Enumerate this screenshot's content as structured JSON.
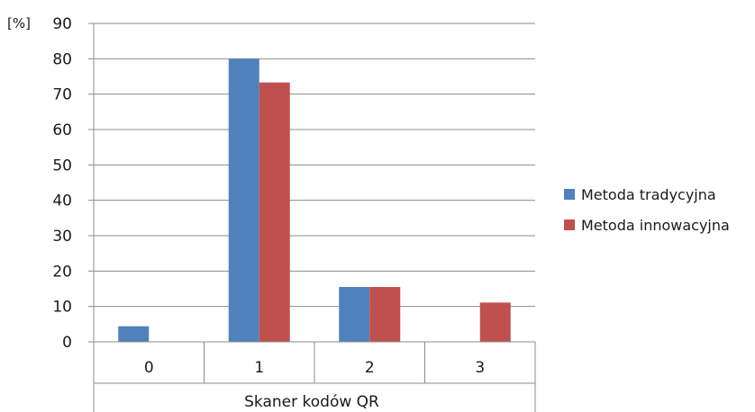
{
  "chart_data": {
    "type": "bar",
    "title": "",
    "unit_label": "[%]",
    "xlabel": "Skaner kodów QR",
    "ylabel": "",
    "categories": [
      "0",
      "1",
      "2",
      "3"
    ],
    "series": [
      {
        "name": "Metoda tradycyjna",
        "color": "#4f81bd",
        "values": [
          4.4,
          80,
          15.5,
          0
        ]
      },
      {
        "name": "Metoda innowacyjna",
        "color": "#c0504d",
        "values": [
          0,
          73.3,
          15.5,
          11.1
        ]
      }
    ],
    "ylim": [
      0,
      90
    ],
    "yticks": [
      "0",
      "10",
      "20",
      "30",
      "40",
      "50",
      "60",
      "70",
      "80",
      "90"
    ],
    "grid": true,
    "legend": "right"
  }
}
